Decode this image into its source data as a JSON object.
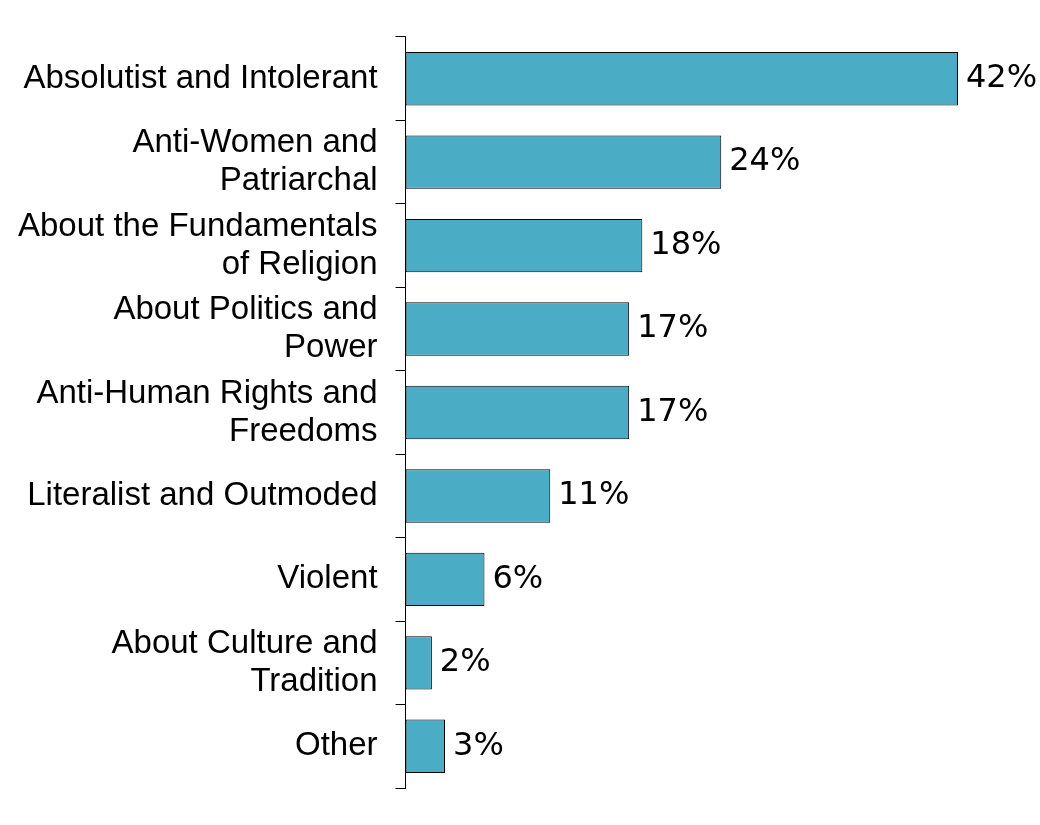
{
  "chart_data": {
    "type": "bar",
    "orientation": "horizontal",
    "categories": [
      "Absolutist and Intolerant",
      "Anti-Women and\nPatriarchal",
      "About the Fundamentals\nof Religion",
      "About Politics and\nPower",
      "Anti-Human Rights and\nFreedoms",
      "Literalist and Outmoded",
      "Violent",
      "About Culture and\nTradition",
      "Other"
    ],
    "values": [
      42,
      24,
      18,
      17,
      17,
      11,
      6,
      2,
      3
    ],
    "value_labels": [
      "42%",
      "24%",
      "18%",
      "17%",
      "17%",
      "11%",
      "6%",
      "2%",
      "3%"
    ],
    "color": "#4bacc6",
    "legend": false
  }
}
